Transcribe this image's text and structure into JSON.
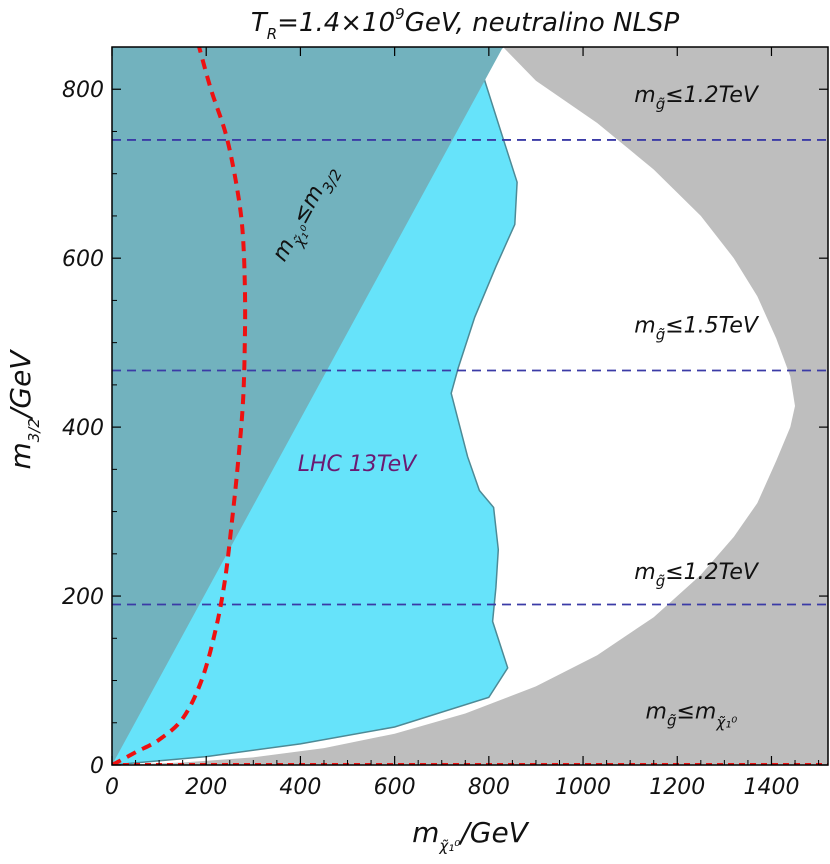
{
  "chart_data": {
    "type": "area",
    "title": {
      "main": "T",
      "main_sub": "R",
      "mid": "=1.4×10",
      "mid_sup": "9",
      "rest": "GeV, neutralino NLSP"
    },
    "xlabel": {
      "main": "m",
      "sub": "χ̃₁⁰",
      "rest": "/GeV"
    },
    "ylabel": {
      "main": "m",
      "sub": "3/2",
      "rest": "/GeV"
    },
    "xlim": [
      0,
      1520
    ],
    "ylim": [
      0,
      850
    ],
    "xticks": [
      0,
      200,
      400,
      600,
      800,
      1000,
      1200,
      1400
    ],
    "yticks": [
      0,
      200,
      400,
      600,
      800
    ],
    "colors": {
      "grey_region": "#bebebe",
      "allowed_region": "#ffffff",
      "lhc_region": "#66e3fa",
      "dark_region": "#72b2be",
      "lhc_edge": "#4d8a96",
      "red_curve": "#ee1111",
      "blue_lines": "#3b3ba6",
      "frame": "#000000"
    },
    "regions": [
      {
        "id": "gluino_limit_excluded",
        "boundary": [
          [
            0,
            0
          ],
          [
            150,
            3
          ],
          [
            300,
            9
          ],
          [
            450,
            20
          ],
          [
            600,
            37
          ],
          [
            750,
            61
          ],
          [
            900,
            93
          ],
          [
            1030,
            130
          ],
          [
            1150,
            175
          ],
          [
            1250,
            225
          ],
          [
            1320,
            270
          ],
          [
            1370,
            310
          ],
          [
            1410,
            360
          ],
          [
            1440,
            400
          ],
          [
            1450,
            425
          ],
          [
            1440,
            460
          ],
          [
            1410,
            505
          ],
          [
            1370,
            555
          ],
          [
            1320,
            600
          ],
          [
            1250,
            650
          ],
          [
            1150,
            705
          ],
          [
            1030,
            760
          ],
          [
            900,
            810
          ],
          [
            830,
            850
          ]
        ]
      },
      {
        "id": "lhc_13tev",
        "label": "LHC 13TeV",
        "boundary": [
          [
            830,
            850
          ],
          [
            780,
            830
          ],
          [
            830,
            742
          ],
          [
            860,
            690
          ],
          [
            855,
            640
          ],
          [
            815,
            590
          ],
          [
            770,
            530
          ],
          [
            735,
            470
          ],
          [
            720,
            440
          ],
          [
            755,
            365
          ],
          [
            780,
            325
          ],
          [
            810,
            305
          ],
          [
            820,
            255
          ],
          [
            815,
            210
          ],
          [
            808,
            170
          ],
          [
            840,
            115
          ],
          [
            800,
            80
          ],
          [
            600,
            45
          ],
          [
            400,
            25
          ],
          [
            200,
            10
          ],
          [
            0,
            0
          ]
        ]
      },
      {
        "id": "neutralino_heavier_than_gravitino",
        "label_main": "m",
        "label_sub": "χ̃₁⁰",
        "label_rest": "≤m",
        "label_rest_sub": "3/2",
        "boundary": [
          [
            0,
            0
          ],
          [
            830,
            850
          ],
          [
            0,
            850
          ]
        ]
      }
    ],
    "red_curve": {
      "style": "dashed",
      "points": [
        [
          0,
          0
        ],
        [
          50,
          15
        ],
        [
          100,
          30
        ],
        [
          150,
          55
        ],
        [
          190,
          100
        ],
        [
          220,
          160
        ],
        [
          240,
          220
        ],
        [
          255,
          290
        ],
        [
          268,
          360
        ],
        [
          278,
          430
        ],
        [
          282,
          500
        ],
        [
          282,
          570
        ],
        [
          276,
          640
        ],
        [
          260,
          700
        ],
        [
          240,
          750
        ],
        [
          210,
          800
        ],
        [
          185,
          850
        ]
      ]
    },
    "red_baseline": {
      "style": "dashed",
      "y": 0
    },
    "hlines": [
      {
        "y": 740,
        "style": "dashed",
        "label_main": "m",
        "label_sub": "g̃",
        "label_rest": "≤1.2TeV",
        "label_x": 1240,
        "label_y": 785
      },
      {
        "y": 467,
        "style": "dashed",
        "label_main": "m",
        "label_sub": "g̃",
        "label_rest": "≤1.5TeV",
        "label_x": 1240,
        "label_y": 512
      },
      {
        "y": 190,
        "style": "dashed",
        "label_main": "m",
        "label_sub": "g̃",
        "label_rest": "≤1.2TeV",
        "label_x": 1240,
        "label_y": 220
      }
    ],
    "annotations": [
      {
        "id": "gluino_lt_neutralino",
        "label_main": "m",
        "label_sub1": "g̃",
        "label_rest": "≤m",
        "label_sub2": "χ̃₁⁰",
        "x": 1230,
        "y": 55
      }
    ]
  }
}
